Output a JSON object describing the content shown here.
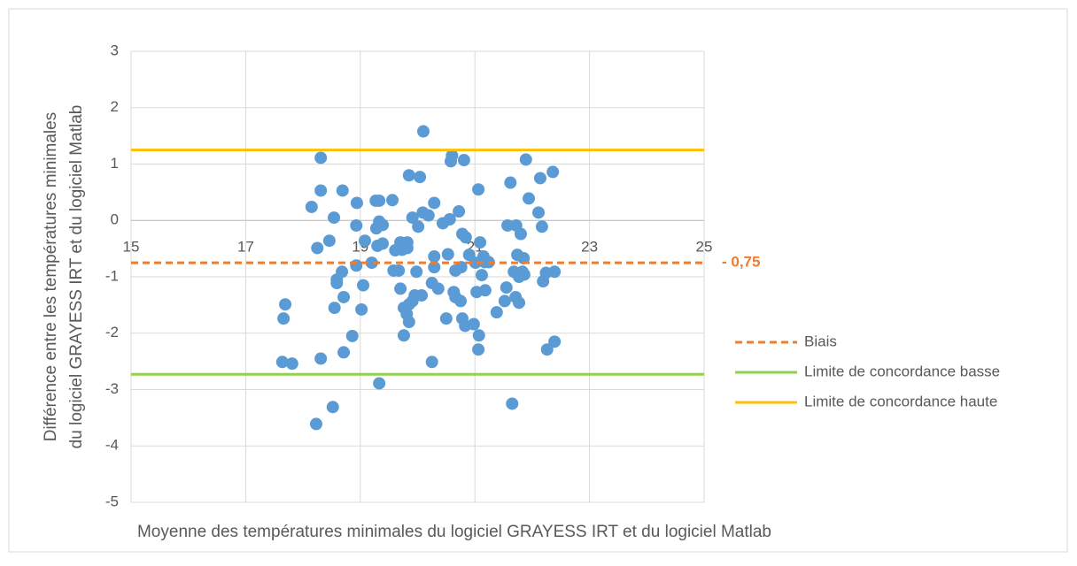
{
  "chart_data": {
    "type": "scatter",
    "xlabel": "Moyenne des températures minimales du logiciel GRAYESS IRT et du logiciel Matlab",
    "ylabel": [
      "Différence entre les températures minimales",
      "du logiciel GRAYESS IRT et du logiciel Matlab"
    ],
    "xlim": [
      15,
      25
    ],
    "xticks": [
      15,
      17,
      19,
      21,
      23,
      25
    ],
    "ylim": [
      -5,
      3
    ],
    "yticks": [
      -5,
      -4,
      -3,
      -2,
      -1,
      0,
      1,
      2,
      3
    ],
    "grid": true,
    "color": "#5B9BD5",
    "x": [
      17.69,
      17.66,
      17.64,
      17.81,
      18.15,
      18.25,
      18.23,
      18.31,
      18.31,
      18.31,
      18.46,
      18.54,
      18.55,
      18.59,
      18.59,
      18.52,
      18.68,
      18.69,
      18.71,
      18.71,
      18.86,
      18.93,
      18.94,
      18.93,
      19.02,
      19.05,
      19.08,
      19.2,
      19.27,
      19.33,
      19.28,
      19.3,
      19.33,
      19.39,
      19.39,
      19.33,
      19.56,
      19.58,
      19.61,
      19.67,
      19.7,
      19.7,
      19.73,
      19.76,
      19.76,
      19.81,
      19.82,
      19.82,
      19.85,
      19.85,
      19.85,
      19.91,
      19.91,
      19.95,
      19.98,
      20.01,
      20.04,
      20.07,
      20.09,
      20.1,
      20.19,
      20.25,
      20.25,
      20.29,
      20.29,
      20.29,
      20.36,
      20.44,
      20.5,
      20.53,
      20.56,
      20.58,
      20.6,
      20.63,
      20.66,
      20.66,
      20.72,
      20.75,
      20.76,
      20.78,
      20.78,
      20.81,
      20.83,
      20.84,
      20.9,
      20.98,
      21.01,
      21.03,
      21.06,
      21.06,
      21.07,
      21.09,
      21.12,
      21.15,
      21.17,
      21.18,
      21.24,
      21.38,
      21.52,
      21.55,
      21.57,
      21.62,
      21.65,
      21.68,
      21.71,
      21.72,
      21.74,
      21.77,
      21.77,
      21.8,
      21.83,
      21.85,
      21.86,
      21.89,
      21.94,
      22.11,
      22.14,
      22.17,
      22.19,
      22.24,
      22.26,
      22.36,
      22.39,
      22.39
    ],
    "y": [
      -1.49,
      -1.74,
      -2.51,
      -2.54,
      0.24,
      -0.49,
      -3.61,
      1.11,
      0.53,
      -2.45,
      -0.36,
      0.05,
      -1.55,
      -1.05,
      -1.11,
      -3.31,
      -0.91,
      0.53,
      -1.36,
      -2.34,
      -2.05,
      -0.09,
      0.31,
      -0.8,
      -1.58,
      -1.15,
      -0.36,
      -0.75,
      0.35,
      0.35,
      -0.14,
      -0.45,
      -0.02,
      -0.08,
      -0.41,
      -2.89,
      0.36,
      -0.89,
      -0.53,
      -0.89,
      -1.21,
      -0.39,
      -0.52,
      -2.04,
      -1.55,
      -1.66,
      -0.49,
      -0.39,
      -1.49,
      -1.8,
      0.8,
      0.05,
      -1.43,
      -1.33,
      -0.91,
      -0.11,
      0.77,
      -1.33,
      0.14,
      1.58,
      0.09,
      -2.51,
      -1.11,
      0.31,
      -0.64,
      -0.83,
      -1.21,
      -0.05,
      -1.74,
      -0.6,
      0.02,
      1.05,
      1.15,
      -1.27,
      -0.89,
      -1.36,
      0.16,
      -1.43,
      -0.83,
      -0.24,
      -1.74,
      1.07,
      -1.87,
      -0.3,
      -0.61,
      -1.84,
      -0.75,
      -1.27,
      0.55,
      -2.29,
      -2.04,
      -0.39,
      -0.97,
      -0.64,
      -0.74,
      -1.24,
      -0.74,
      -1.63,
      -1.43,
      -1.19,
      -0.09,
      0.67,
      -3.25,
      -0.91,
      -1.36,
      -0.09,
      -0.61,
      -1.0,
      -1.46,
      -0.24,
      -0.91,
      -0.67,
      -0.96,
      1.08,
      0.39,
      0.14,
      0.75,
      -0.11,
      -1.08,
      -0.93,
      -2.29,
      0.86,
      -0.91,
      -2.15
    ],
    "lines": [
      {
        "name": "Biais",
        "value": -0.75,
        "value_label": "- 0,75",
        "color": "#ED7D31",
        "dashed": true
      },
      {
        "name": "Limite de concordance basse",
        "value": -2.73,
        "color": "#92D050",
        "dashed": false
      },
      {
        "name": "Limite de concordance haute",
        "value": 1.25,
        "color": "#FFC000",
        "dashed": false
      }
    ]
  }
}
